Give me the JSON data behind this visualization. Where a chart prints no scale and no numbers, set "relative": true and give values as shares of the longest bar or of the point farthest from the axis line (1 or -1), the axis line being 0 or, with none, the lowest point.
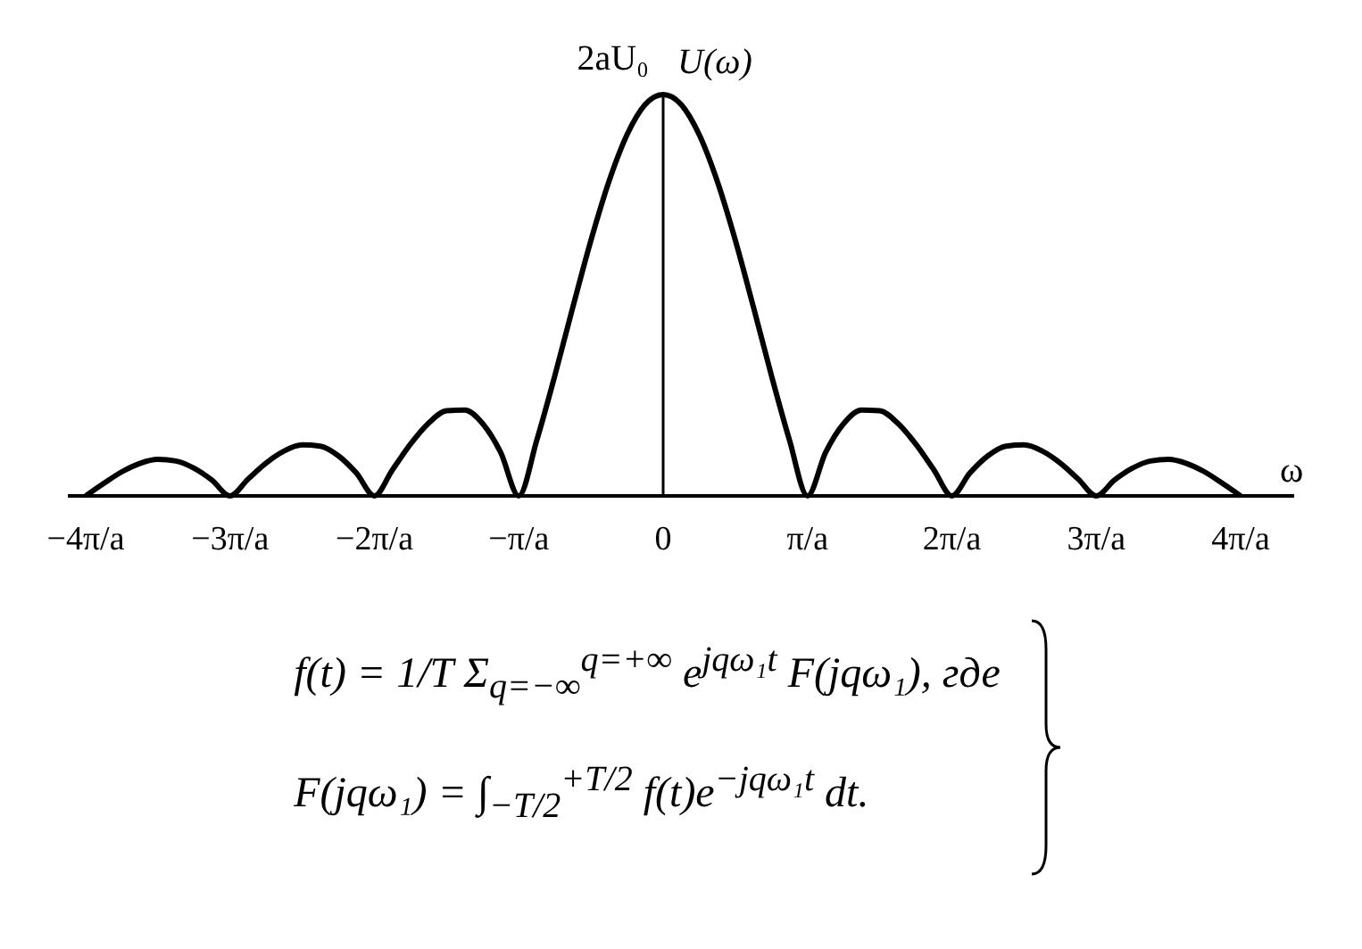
{
  "chart_data": {
    "type": "line",
    "relative": true,
    "xlabel": "ω",
    "ylabel": "U(ω)",
    "categories": [
      "−4π/a",
      null,
      null,
      null,
      null,
      null,
      null,
      null,
      "−3π/a",
      null,
      null,
      null,
      null,
      null,
      null,
      null,
      "−2π/a",
      null,
      null,
      null,
      null,
      null,
      null,
      null,
      "−π/a",
      null,
      null,
      null,
      null,
      null,
      null,
      null,
      "0",
      null,
      null,
      null,
      null,
      null,
      null,
      null,
      "π/a",
      null,
      null,
      null,
      null,
      null,
      null,
      null,
      "2π/a",
      null,
      null,
      null,
      null,
      null,
      null,
      null,
      "3π/a",
      null,
      null,
      null,
      null,
      null,
      null,
      null,
      "4π/a"
    ],
    "series": [
      {
        "color": "#000000",
        "values": [
          0,
          0.031,
          0.06,
          0.081,
          0.091,
          0.087,
          0.069,
          0.039,
          0,
          0.042,
          0.082,
          0.112,
          0.127,
          0.124,
          0.1,
          0.057,
          0,
          0.065,
          0.129,
          0.181,
          0.212,
          0.214,
          0.18,
          0.108,
          0,
          0.139,
          0.3,
          0.471,
          0.637,
          0.784,
          0.9,
          0.975,
          1,
          0.975,
          0.9,
          0.784,
          0.637,
          0.471,
          0.3,
          0.139,
          0,
          0.108,
          0.18,
          0.214,
          0.212,
          0.181,
          0.129,
          0.065,
          0,
          0.057,
          0.1,
          0.124,
          0.127,
          0.112,
          0.082,
          0.042,
          0,
          0.039,
          0.069,
          0.087,
          0.091,
          0.081,
          0.06,
          0.031,
          0
        ]
      }
    ],
    "marker": "none",
    "line_style": "solid",
    "annotations": [
      {
        "text": "2aU₀",
        "x": "0",
        "y": 1
      },
      "f(t) = 1/T Σ$_{q=−∞}$$^{q=+∞}$ e$^{jqω₁t}$ F(jqω₁),  где",
      "F(jqω₁) = ∫$_{−T/2}$$^{+T/2}$ f(t)e$^{−jqω₁t}$ dt."
    ]
  }
}
